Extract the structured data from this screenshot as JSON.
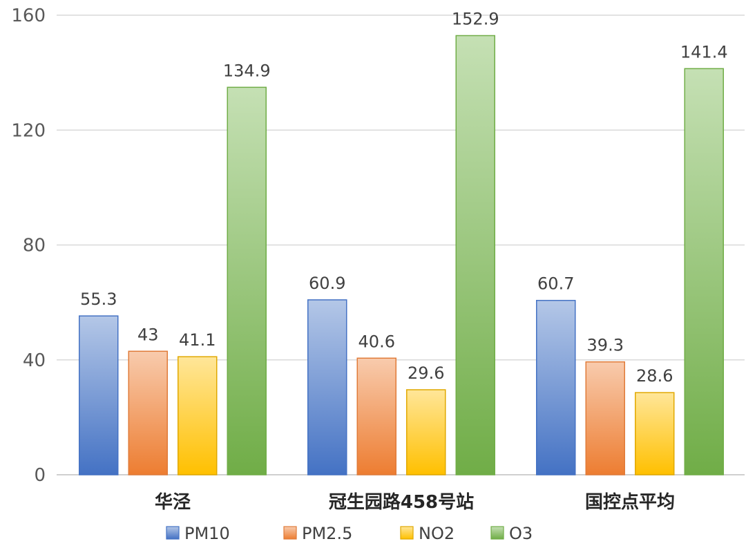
{
  "chart_data": {
    "type": "bar",
    "categories": [
      "华泾",
      "冠生园路458号站",
      "国控点平均"
    ],
    "series": [
      {
        "name": "PM10",
        "values": [
          55.3,
          60.9,
          60.7
        ],
        "color_top": "#b4c7e7",
        "color_bottom": "#4472c4",
        "border": "#4472c4"
      },
      {
        "name": "PM2.5",
        "values": [
          43,
          40.6,
          39.3
        ],
        "color_top": "#f8cbad",
        "color_bottom": "#ed7d31",
        "border": "#e07b39"
      },
      {
        "name": "NO2",
        "values": [
          41.1,
          29.6,
          28.6
        ],
        "color_top": "#ffe699",
        "color_bottom": "#ffc000",
        "border": "#e0a800"
      },
      {
        "name": "O3",
        "values": [
          134.9,
          152.9,
          141.4
        ],
        "color_top": "#c5e0b4",
        "color_bottom": "#70ad47",
        "border": "#70ad47"
      }
    ],
    "data_labels": [
      [
        "55.3",
        "60.9",
        "60.7"
      ],
      [
        "43",
        "40.6",
        "39.3"
      ],
      [
        "41.1",
        "29.6",
        "28.6"
      ],
      [
        "134.9",
        "152.9",
        "141.4"
      ]
    ],
    "y_ticks": [
      "0",
      "40",
      "80",
      "120",
      "160"
    ],
    "ylim": [
      0,
      160
    ],
    "grid": true,
    "legend_position": "bottom",
    "title": "",
    "xlabel": "",
    "ylabel": ""
  }
}
